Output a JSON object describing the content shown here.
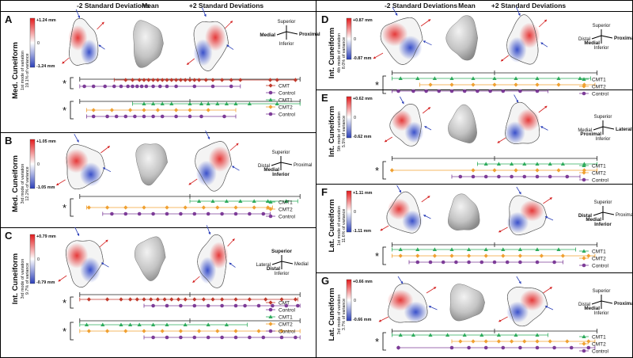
{
  "headers": {
    "minus": "-2 Standard Deviations",
    "mean": "Mean",
    "plus": "+2 Standard Deviations"
  },
  "colors": {
    "cmt": "#c0392b",
    "cmt1": "#2eab5c",
    "cmt2": "#f0a030",
    "control": "#7d3c98"
  },
  "panels": [
    {
      "letter": "A",
      "title": "Med. Cuneiform",
      "mode": "1st mode of variation",
      "variance": "19.1% of variance",
      "scale_max": "+1.24 mm",
      "scale_min": "-1.24 mm",
      "scale_zero": "0",
      "orient": {
        "top": "Superior",
        "bottom": "Inferior",
        "left": "Medial",
        "right": "Proximal",
        "bold": [
          "Medial",
          "Proximal"
        ]
      },
      "groups": [
        {
          "star": "*",
          "range": [
            0.02,
            0.98
          ],
          "rows": [
            {
              "group": "CMT",
              "label": "CMT",
              "marker": "diamond",
              "min": 0.17,
              "max": 0.96,
              "dots": [
                0.22,
                0.25,
                0.28,
                0.3,
                0.32,
                0.34,
                0.36,
                0.38,
                0.4,
                0.42,
                0.44,
                0.46,
                0.48,
                0.5,
                0.52,
                0.54,
                0.57,
                0.6,
                0.64,
                0.68,
                0.72,
                0.85,
                0.88,
                0.96
              ]
            },
            {
              "group": "Control",
              "label": "Control",
              "marker": "circle",
              "min": 0.02,
              "max": 0.72,
              "dots": [
                0.04,
                0.08,
                0.13,
                0.17,
                0.2,
                0.23,
                0.25,
                0.27,
                0.29,
                0.31,
                0.34,
                0.37,
                0.4,
                0.44,
                0.52,
                0.6,
                0.68
              ]
            }
          ]
        },
        {
          "star": "*",
          "range": [
            0.02,
            0.98
          ],
          "rows": [
            {
              "group": "CMT1",
              "label": "CMT1",
              "marker": "triangle",
              "min": 0.25,
              "max": 0.98,
              "dots": [
                0.3,
                0.34,
                0.38,
                0.42,
                0.5,
                0.55,
                0.58,
                0.62,
                0.66,
                0.7,
                0.76,
                0.88
              ]
            },
            {
              "group": "CMT2",
              "label": "CMT2",
              "marker": "diamond",
              "min": 0.05,
              "max": 0.7,
              "dots": [
                0.08,
                0.16,
                0.24,
                0.3,
                0.36,
                0.44,
                0.5,
                0.58
              ]
            },
            {
              "group": "Control",
              "label": "Control",
              "marker": "circle",
              "min": 0.05,
              "max": 0.7,
              "dots": [
                0.08,
                0.14,
                0.18,
                0.22,
                0.26,
                0.3,
                0.34,
                0.38,
                0.44,
                0.5,
                0.55,
                0.65
              ]
            }
          ]
        }
      ]
    },
    {
      "letter": "B",
      "title": "Med. Cuneiform",
      "mode": "3rd mode of variation",
      "variance": "12.2% of variance",
      "scale_max": "+1.05 mm",
      "scale_min": "-1.05 mm",
      "scale_zero": "0",
      "orient": {
        "top": "Superior",
        "bottom": "Inferior",
        "left": "Distal",
        "right": "Proximal",
        "extra": "Medial",
        "bold": [
          "Medial",
          "Inferior"
        ]
      },
      "groups": [
        {
          "star": "*",
          "range": [
            0.02,
            0.98
          ],
          "rows": [
            {
              "group": "CMT1",
              "label": "CMT1",
              "marker": "triangle",
              "min": 0.5,
              "max": 0.97,
              "dots": [
                0.54,
                0.6,
                0.66,
                0.72,
                0.78,
                0.84,
                0.92
              ]
            },
            {
              "group": "CMT2",
              "label": "CMT2",
              "marker": "diamond",
              "min": 0.05,
              "max": 0.86,
              "dots": [
                0.06,
                0.14,
                0.22,
                0.3,
                0.4,
                0.48,
                0.56,
                0.62,
                0.7,
                0.78,
                0.84
              ]
            },
            {
              "group": "Control",
              "label": "Control",
              "marker": "circle",
              "min": 0.12,
              "max": 0.85,
              "dots": [
                0.16,
                0.22,
                0.28,
                0.34,
                0.4,
                0.46,
                0.52,
                0.58,
                0.64,
                0.7,
                0.76,
                0.82
              ]
            }
          ]
        }
      ]
    },
    {
      "letter": "C",
      "title": "Int. Cuneiform",
      "mode": "3rd mode of variation",
      "variance": "9.7% of variance",
      "scale_max": "+0.79 mm",
      "scale_min": "-0.79 mm",
      "scale_zero": "0",
      "orient": {
        "top": "Superior",
        "bottom": "Inferior",
        "left": "Lateral",
        "right": "Medial",
        "extra": "Distal",
        "bold": [
          "Superior",
          "Distal"
        ]
      },
      "groups": [
        {
          "star": "*",
          "range": [
            0.02,
            0.98
          ],
          "rows": [
            {
              "group": "CMT",
              "label": "CMT",
              "marker": "diamond",
              "min": 0.02,
              "max": 0.97,
              "dots": [
                0.06,
                0.14,
                0.2,
                0.24,
                0.27,
                0.3,
                0.33,
                0.36,
                0.39,
                0.42,
                0.45,
                0.48,
                0.52,
                0.56,
                0.6,
                0.64,
                0.7,
                0.76,
                0.83,
                0.9,
                0.96
              ]
            },
            {
              "group": "Control",
              "label": "Control",
              "marker": "circle",
              "min": 0.3,
              "max": 0.98,
              "dots": [
                0.34,
                0.4,
                0.46,
                0.52,
                0.58,
                0.64,
                0.7,
                0.74,
                0.8,
                0.86,
                0.92,
                0.97
              ]
            }
          ]
        },
        {
          "star": "*",
          "range": [
            0.02,
            0.98
          ],
          "rows": [
            {
              "group": "CMT1",
              "label": "CMT1",
              "marker": "triangle",
              "min": 0.02,
              "max": 0.75,
              "dots": [
                0.05,
                0.12,
                0.2,
                0.24,
                0.28,
                0.34,
                0.4,
                0.48,
                0.58,
                0.66
              ]
            },
            {
              "group": "CMT2",
              "label": "CMT2",
              "marker": "diamond",
              "min": 0.02,
              "max": 0.98,
              "dots": [
                0.06,
                0.14,
                0.22,
                0.3,
                0.38,
                0.46,
                0.54,
                0.62,
                0.7,
                0.8,
                0.9
              ]
            },
            {
              "group": "Control",
              "label": "Control",
              "marker": "circle",
              "min": 0.3,
              "max": 0.98,
              "dots": [
                0.34,
                0.4,
                0.46,
                0.52,
                0.58,
                0.64,
                0.7,
                0.76,
                0.82,
                0.9,
                0.96
              ]
            }
          ]
        }
      ]
    },
    {
      "letter": "D",
      "title": "Int. Cuneiform",
      "mode": "4th mode of variation",
      "variance": "8.0% of variance",
      "scale_max": "+0.87 mm",
      "scale_min": "-0.87 mm",
      "scale_zero": "0",
      "orient": {
        "top": "Superior",
        "bottom": "Inferior",
        "left": "Distal",
        "right": "Proximal",
        "extra": "Medial",
        "bold": [
          "Proximal",
          "Medial"
        ]
      },
      "groups": [
        {
          "star": "*",
          "range": [
            0.02,
            0.98
          ],
          "rows": [
            {
              "group": "CMT1",
              "label": "CMT1",
              "marker": "triangle",
              "min": 0.02,
              "max": 0.95,
              "dots": [
                0.06,
                0.14,
                0.22,
                0.3,
                0.4,
                0.5,
                0.6,
                0.7,
                0.8,
                0.9
              ]
            },
            {
              "group": "CMT2",
              "label": "CMT2",
              "marker": "diamond",
              "min": 0.15,
              "max": 0.97,
              "dots": [
                0.2,
                0.3,
                0.4,
                0.5,
                0.6,
                0.7,
                0.8,
                0.92
              ]
            },
            {
              "group": "Control",
              "label": "Control",
              "marker": "circle",
              "min": 0.02,
              "max": 0.75,
              "dots": [
                0.05,
                0.12,
                0.18,
                0.24,
                0.3,
                0.36,
                0.42,
                0.48,
                0.54,
                0.62,
                0.7
              ]
            }
          ]
        }
      ]
    },
    {
      "letter": "E",
      "title": "Int. Cuneiform",
      "mode": "5th mode of variation",
      "variance": "5.5% of variance",
      "scale_max": "+0.62 mm",
      "scale_min": "-0.62 mm",
      "scale_zero": "0",
      "orient": {
        "top": "Superior",
        "bottom": "Inferior",
        "left": "Medial",
        "right": "Lateral",
        "extra": "Proximal",
        "bold": [
          "Lateral",
          "Proximal"
        ]
      },
      "groups": [
        {
          "star": "*",
          "range": [
            0.02,
            0.98
          ],
          "rows": [
            {
              "group": "CMT1",
              "label": "CMT1",
              "marker": "triangle",
              "min": 0.42,
              "max": 0.98,
              "dots": [
                0.46,
                0.52,
                0.58,
                0.64,
                0.7,
                0.76,
                0.82,
                0.92
              ]
            },
            {
              "group": "CMT2",
              "label": "CMT2",
              "marker": "diamond",
              "min": 0.02,
              "max": 0.98,
              "dots": [
                0.02,
                0.4,
                0.5,
                0.6,
                0.7,
                0.8,
                0.92
              ]
            },
            {
              "group": "Control",
              "label": "Control",
              "marker": "circle",
              "min": 0.3,
              "max": 0.9,
              "dots": [
                0.34,
                0.4,
                0.46,
                0.52,
                0.58,
                0.64,
                0.7,
                0.76,
                0.84
              ]
            }
          ]
        }
      ]
    },
    {
      "letter": "F",
      "title": "Lat. Cuneiform",
      "mode": "1st mode of variation",
      "variance": "11.6% of variance",
      "scale_max": "+1.11 mm",
      "scale_min": "-1.11 mm",
      "scale_zero": "0",
      "orient": {
        "top": "Superior",
        "bottom": "Inferior",
        "left": "Distal",
        "right": "Proximal",
        "extra": "Medial",
        "bold": [
          "Distal",
          "Medial",
          "Inferior"
        ]
      },
      "groups": [
        {
          "star": "*",
          "range": [
            0.02,
            0.98
          ],
          "rows": [
            {
              "group": "CMT1",
              "label": "CMT1",
              "marker": "triangle",
              "min": 0.02,
              "max": 0.88,
              "dots": [
                0.06,
                0.14,
                0.22,
                0.3,
                0.38,
                0.46,
                0.54,
                0.62,
                0.7,
                0.8
              ]
            },
            {
              "group": "CMT2",
              "label": "CMT2",
              "marker": "diamond",
              "min": 0.02,
              "max": 0.97,
              "dots": [
                0.06,
                0.14,
                0.22,
                0.3,
                0.38,
                0.46,
                0.54,
                0.62,
                0.72,
                0.82,
                0.94
              ]
            },
            {
              "group": "Control",
              "label": "Control",
              "marker": "circle",
              "min": 0.1,
              "max": 0.82,
              "dots": [
                0.14,
                0.2,
                0.26,
                0.32,
                0.38,
                0.44,
                0.5,
                0.56,
                0.62,
                0.7,
                0.78
              ]
            }
          ]
        }
      ]
    },
    {
      "letter": "G",
      "title": "Lat. Cuneiform",
      "mode": "3rd mode of variation",
      "variance": "3.7% of variance",
      "scale_max": "+0.66 mm",
      "scale_min": "-0.66 mm",
      "scale_zero": "0",
      "orient": {
        "top": "Superior",
        "bottom": "Inferior",
        "left": "Distal",
        "right": "Proximal",
        "extra": "Medial",
        "bold": [
          "Medial",
          "Proximal"
        ]
      },
      "groups": [
        {
          "star": "*",
          "range": [
            0.02,
            0.98
          ],
          "rows": [
            {
              "group": "CMT1",
              "label": "CMT1",
              "marker": "triangle",
              "min": 0.02,
              "max": 0.75,
              "dots": [
                0.06,
                0.12,
                0.2,
                0.28,
                0.36,
                0.44,
                0.52,
                0.6,
                0.7
              ]
            },
            {
              "group": "CMT2",
              "label": "CMT2",
              "marker": "diamond",
              "min": 0.3,
              "max": 0.97,
              "dots": [
                0.34,
                0.4,
                0.46,
                0.52,
                0.58,
                0.64,
                0.7,
                0.76,
                0.84,
                0.94
              ]
            },
            {
              "group": "Control",
              "label": "Control",
              "marker": "circle",
              "min": 0.05,
              "max": 0.97,
              "dots": [
                0.05,
                0.3,
                0.38,
                0.46,
                0.54,
                0.62,
                0.7,
                0.78,
                0.86,
                0.94
              ]
            }
          ]
        }
      ]
    }
  ]
}
